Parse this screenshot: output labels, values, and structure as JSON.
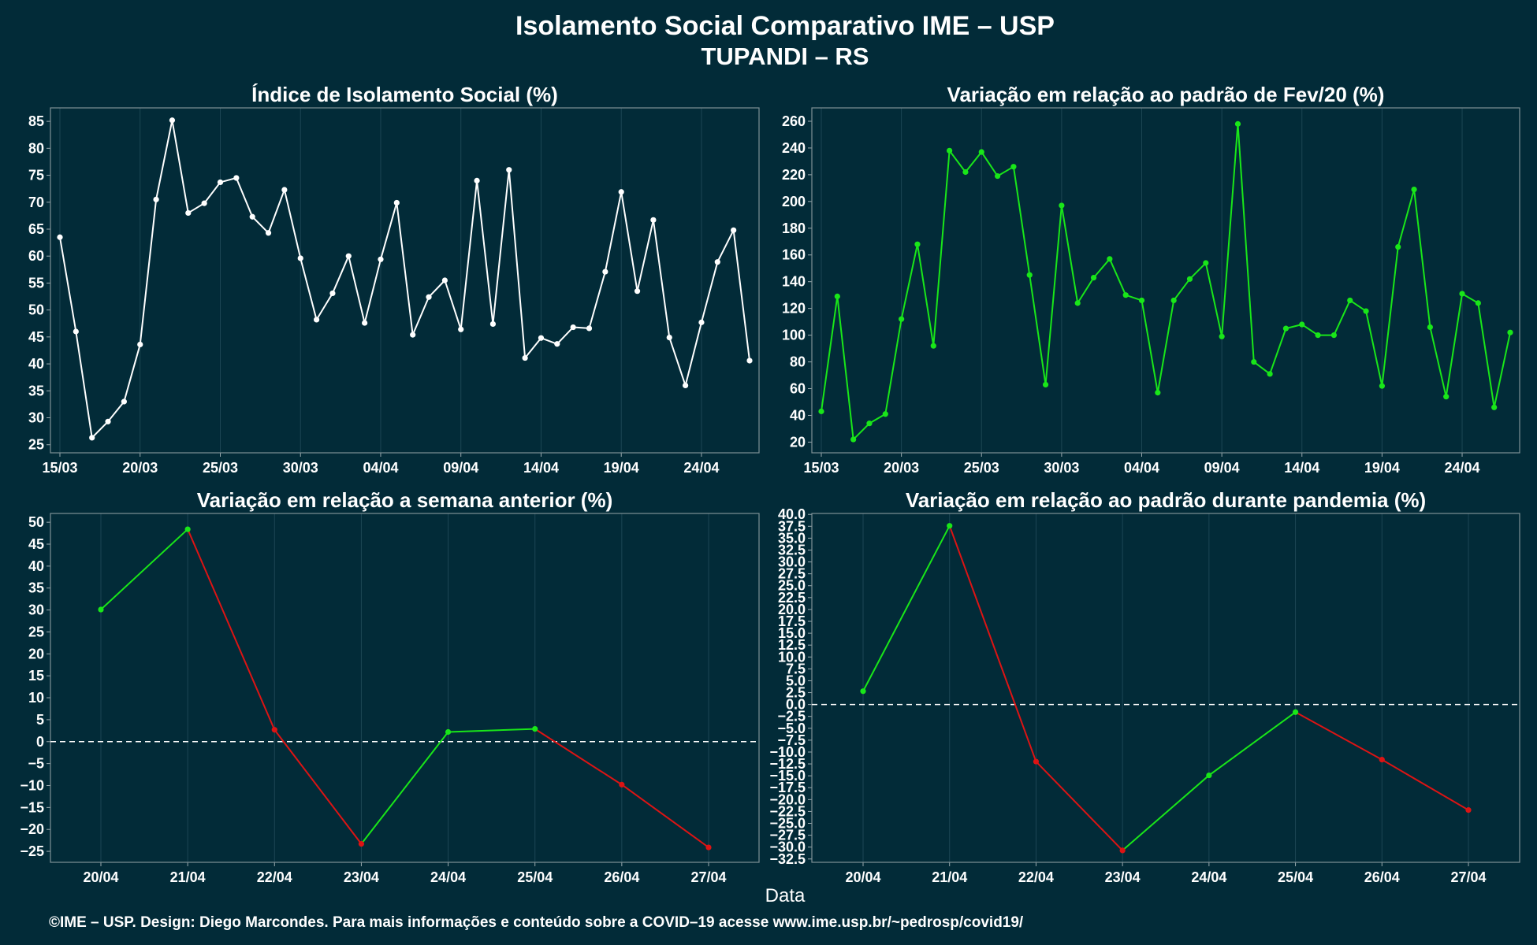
{
  "page": {
    "title": "Isolamento Social Comparativo IME – USP",
    "subtitle": "TUPANDI – RS",
    "xlabel": "Data",
    "footer": "©IME – USP. Design: Diego Marcondes. Para mais informações e conteúdo sobre a COVID–19 acesse www.ime.usp.br/~pedrosp/covid19/"
  },
  "colors": {
    "background": "#022b38",
    "grid": "#1c4654",
    "white_line": "#ffffff",
    "increase": "#19e619",
    "decrease": "#dc1414",
    "zero_line": "#ffffff"
  },
  "chart_data": [
    {
      "id": "isolamento",
      "type": "line",
      "title": "Índice de Isolamento Social (%)",
      "color": "#ffffff",
      "x": [
        "15/03",
        "16/03",
        "17/03",
        "18/03",
        "19/03",
        "20/03",
        "21/03",
        "22/03",
        "23/03",
        "24/03",
        "25/03",
        "26/03",
        "27/03",
        "28/03",
        "29/03",
        "30/03",
        "31/03",
        "01/04",
        "02/04",
        "03/04",
        "04/04",
        "05/04",
        "06/04",
        "07/04",
        "08/04",
        "09/04",
        "10/04",
        "11/04",
        "12/04",
        "13/04",
        "14/04",
        "15/04",
        "16/04",
        "17/04",
        "18/04",
        "19/04",
        "20/04",
        "21/04",
        "22/04",
        "23/04",
        "24/04",
        "25/04",
        "26/04",
        "27/04"
      ],
      "values": [
        63.5,
        46,
        26.3,
        29.3,
        33,
        43.6,
        70.5,
        85.2,
        68,
        69.8,
        73.7,
        74.5,
        67.3,
        64.3,
        72.3,
        59.6,
        48.2,
        53.1,
        60,
        47.6,
        59.4,
        69.9,
        45.4,
        52.4,
        55.5,
        46.4,
        74,
        47.4,
        76,
        41.1,
        44.8,
        43.7,
        46.8,
        46.6,
        57.1,
        71.9,
        53.5,
        66.7,
        44.9,
        36,
        47.7,
        58.9,
        64.8,
        40.6
      ],
      "xticks": [
        "15/03",
        "20/03",
        "25/03",
        "30/03",
        "04/04",
        "09/04",
        "14/04",
        "19/04",
        "24/04"
      ],
      "yticks": [
        25,
        30,
        35,
        40,
        45,
        50,
        55,
        60,
        65,
        70,
        75,
        80,
        85
      ],
      "ylim": [
        23.5,
        87.5
      ]
    },
    {
      "id": "fev20",
      "type": "line",
      "title": "Variação em relação ao padrão de Fev/20 (%)",
      "color": "#19e619",
      "x": [
        "15/03",
        "16/03",
        "17/03",
        "18/03",
        "19/03",
        "20/03",
        "21/03",
        "22/03",
        "23/03",
        "24/03",
        "25/03",
        "26/03",
        "27/03",
        "28/03",
        "29/03",
        "30/03",
        "31/03",
        "01/04",
        "02/04",
        "03/04",
        "04/04",
        "05/04",
        "06/04",
        "07/04",
        "08/04",
        "09/04",
        "10/04",
        "11/04",
        "12/04",
        "13/04",
        "14/04",
        "15/04",
        "16/04",
        "17/04",
        "18/04",
        "19/04",
        "20/04",
        "21/04",
        "22/04",
        "23/04",
        "24/04",
        "25/04",
        "26/04",
        "27/04"
      ],
      "values": [
        43,
        129,
        22,
        34,
        41,
        112,
        168,
        92,
        238,
        222,
        237,
        219,
        226,
        145,
        63,
        197,
        124,
        143,
        157,
        130,
        126,
        57,
        126,
        142,
        154,
        99,
        258,
        80,
        71,
        105,
        108,
        100,
        100,
        126,
        118,
        62,
        166,
        209,
        106,
        54,
        131,
        124,
        46,
        102
      ],
      "xticks": [
        "15/03",
        "20/03",
        "25/03",
        "30/03",
        "04/04",
        "09/04",
        "14/04",
        "19/04",
        "24/04"
      ],
      "yticks": [
        20,
        40,
        60,
        80,
        100,
        120,
        140,
        160,
        180,
        200,
        220,
        240,
        260
      ],
      "ylim": [
        12,
        270
      ]
    },
    {
      "id": "semana",
      "type": "line",
      "title": "Variação em relação a semana anterior (%)",
      "x": [
        "20/04",
        "21/04",
        "22/04",
        "23/04",
        "24/04",
        "25/04",
        "26/04",
        "27/04"
      ],
      "values": [
        30.1,
        48.4,
        2.7,
        -23.3,
        2.2,
        2.9,
        -9.8,
        -24.1
      ],
      "xticks": [
        "20/04",
        "21/04",
        "22/04",
        "23/04",
        "24/04",
        "25/04",
        "26/04",
        "27/04"
      ],
      "yticks": [
        -25,
        -20,
        -15,
        -10,
        -5,
        0,
        5,
        10,
        15,
        20,
        25,
        30,
        35,
        40,
        45,
        50
      ],
      "ylim": [
        -27.5,
        52
      ],
      "zero_line": true
    },
    {
      "id": "pandemia",
      "type": "line",
      "title": "Variação em relação ao padrão durante pandemia (%)",
      "x": [
        "20/04",
        "21/04",
        "22/04",
        "23/04",
        "24/04",
        "25/04",
        "26/04",
        "27/04"
      ],
      "values": [
        2.8,
        37.6,
        -12,
        -30.7,
        -14.9,
        -1.6,
        -11.6,
        -22.2
      ],
      "xticks": [
        "20/04",
        "21/04",
        "22/04",
        "23/04",
        "24/04",
        "25/04",
        "26/04",
        "27/04"
      ],
      "yticks": [
        -32.5,
        -30,
        -27.5,
        -25,
        -22.5,
        -20,
        -17.5,
        -15,
        -12.5,
        -10,
        -7.5,
        -5,
        -2.5,
        0,
        2.5,
        5,
        7.5,
        10,
        12.5,
        15,
        17.5,
        20,
        22.5,
        25,
        27.5,
        30,
        32.5,
        35,
        37.5,
        40
      ],
      "ylim": [
        -33.2,
        40.2
      ],
      "zero_line": true
    }
  ]
}
